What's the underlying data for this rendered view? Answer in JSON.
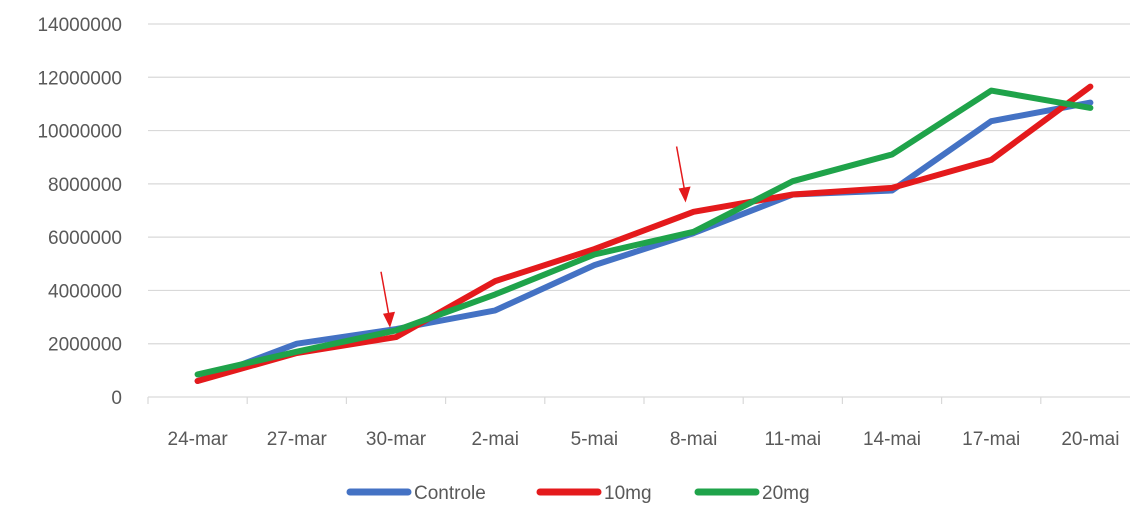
{
  "chart_data": {
    "type": "line",
    "categories": [
      "24-mar",
      "27-mar",
      "30-mar",
      "2-mai",
      "5-mai",
      "8-mai",
      "11-mai",
      "14-mai",
      "17-mai",
      "20-mai"
    ],
    "ylim": [
      0,
      14000000
    ],
    "yticks": [
      "0",
      "2000000",
      "4000000",
      "6000000",
      "8000000",
      "10000000",
      "12000000",
      "14000000"
    ],
    "grid": true,
    "legend_position": "bottom",
    "series": [
      {
        "name": "Controle",
        "color": "#4472C4",
        "values": [
          600000,
          2000000,
          2550000,
          3250000,
          4950000,
          6150000,
          7600000,
          7750000,
          10350000,
          11050000
        ]
      },
      {
        "name": "10mg",
        "color": "#E41A1C",
        "values": [
          600000,
          1650000,
          2250000,
          4350000,
          5550000,
          6950000,
          7600000,
          7850000,
          8900000,
          11650000
        ]
      },
      {
        "name": "20mg",
        "color": "#1FA34A",
        "values": [
          850000,
          1700000,
          2500000,
          3850000,
          5350000,
          6200000,
          8100000,
          9100000,
          11500000,
          10850000
        ]
      }
    ],
    "annotations": [
      {
        "type": "arrow",
        "category_index": 2,
        "y": 2600000,
        "color": "#E41A1C"
      },
      {
        "type": "arrow",
        "category_index": 5,
        "y": 7300000,
        "color": "#E41A1C"
      }
    ]
  }
}
